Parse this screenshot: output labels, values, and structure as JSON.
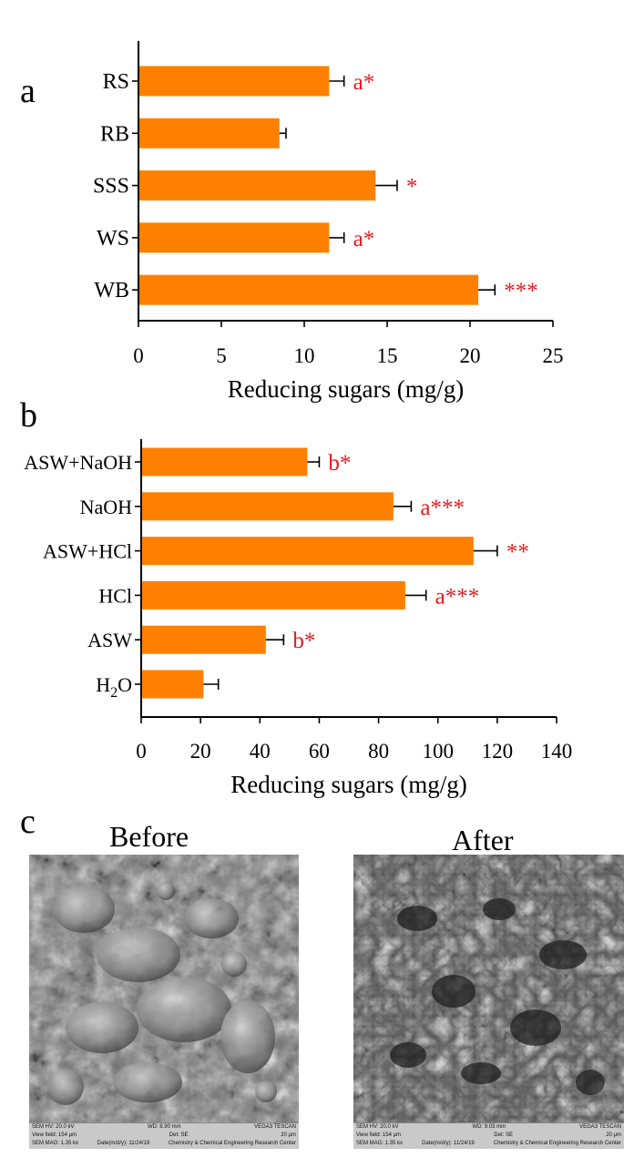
{
  "panels": {
    "a": "a",
    "b": "b",
    "c": "c"
  },
  "chart_data": [
    {
      "type": "bar",
      "orientation": "horizontal",
      "panel": "a",
      "categories": [
        "RS",
        "RB",
        "SSS",
        "WS",
        "WB"
      ],
      "values": [
        11.5,
        8.5,
        14.3,
        11.5,
        20.5
      ],
      "errors": [
        0.9,
        0.4,
        1.3,
        0.9,
        1.0
      ],
      "annotations": [
        "a*",
        "",
        "*",
        "a*",
        "***"
      ],
      "xlabel": "Reducing sugars (mg/g)",
      "xlim": [
        0,
        25
      ],
      "xticks": [
        "0",
        "5",
        "10",
        "15",
        "20",
        "25"
      ],
      "bar_color": "#ff8000",
      "annotation_color": "#e8191c"
    },
    {
      "type": "bar",
      "orientation": "horizontal",
      "panel": "b",
      "categories": [
        "ASW+NaOH",
        "NaOH",
        "ASW+HCl",
        "HCl",
        "ASW",
        "H2O"
      ],
      "category_labels": [
        {
          "main": "ASW+NaOH",
          "sub": "",
          "tail": ""
        },
        {
          "main": "NaOH",
          "sub": "",
          "tail": ""
        },
        {
          "main": "ASW+HCl",
          "sub": "",
          "tail": ""
        },
        {
          "main": "HCl",
          "sub": "",
          "tail": ""
        },
        {
          "main": "ASW",
          "sub": "",
          "tail": ""
        },
        {
          "main": "H",
          "sub": "2",
          "tail": "O"
        }
      ],
      "values": [
        56,
        85,
        112,
        89,
        42,
        21
      ],
      "errors": [
        4,
        6,
        8,
        7,
        6,
        5
      ],
      "annotations": [
        "b*",
        "a***",
        "**",
        "a***",
        "b*",
        ""
      ],
      "xlabel": "Reducing sugars (mg/g)",
      "xlim": [
        0,
        140
      ],
      "xticks": [
        "0",
        "20",
        "40",
        "60",
        "80",
        "100",
        "120",
        "140"
      ],
      "bar_color": "#ff8000",
      "annotation_color": "#e8191c"
    }
  ],
  "sem": {
    "before": {
      "title": "Before",
      "info": [
        [
          "SEM HV: 20.0 kV",
          "WD: 8.90 mm",
          "",
          "VEGA3 TESCAN"
        ],
        [
          "View field: 154 μm",
          "Det: SE",
          "20 μm",
          ""
        ],
        [
          "SEM MAG: 1.35 kx",
          "Date(m/d/y): 11/24/19",
          "Chemistry & Chemical Engineering Research Center",
          ""
        ]
      ]
    },
    "after": {
      "title": "After",
      "info": [
        [
          "SEM HV: 20.0 kV",
          "WD: 9.03 mm",
          "",
          "VEGA3 TESCAN"
        ],
        [
          "View field: 154 μm",
          "Det: SE",
          "20 μm",
          ""
        ],
        [
          "SEM MAG: 1.35 kx",
          "Date(m/d/y): 11/24/19",
          "Chemistry & Chemical Engineering Research Center",
          ""
        ]
      ]
    }
  }
}
